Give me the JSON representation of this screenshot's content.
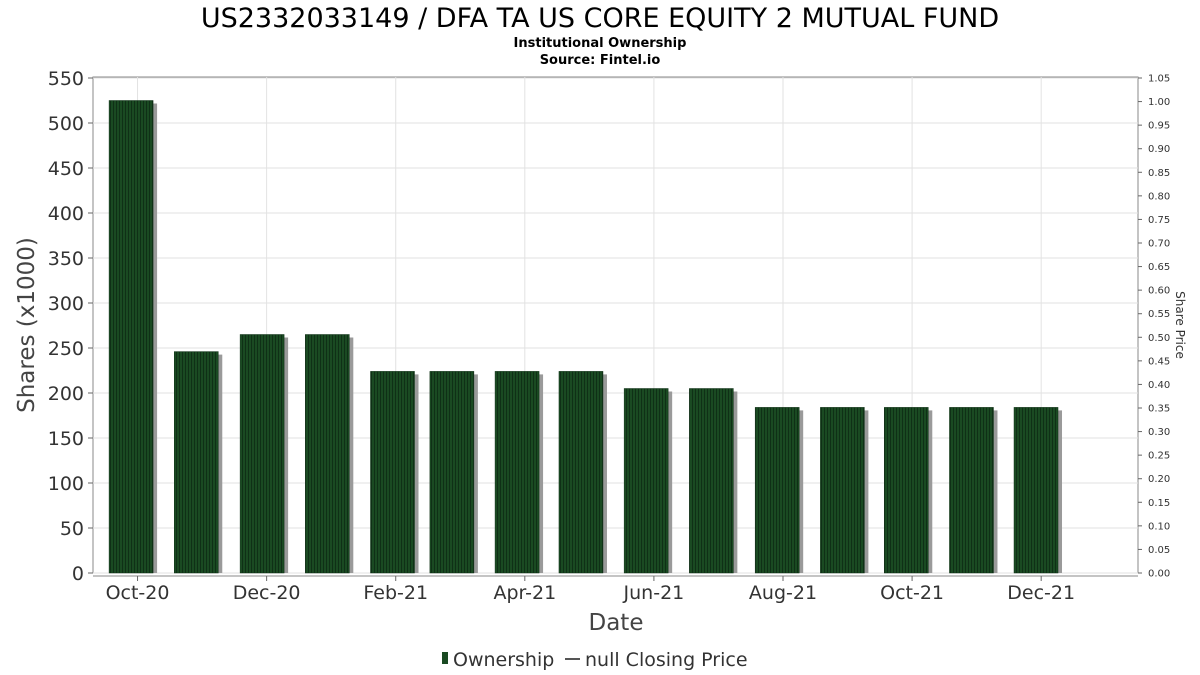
{
  "chart_data": {
    "type": "bar",
    "title": "US2332033149 / DFA TA US CORE EQUITY 2 MUTUAL FUND",
    "subtitle": "Institutional Ownership",
    "source": "Source: Fintel.io",
    "xlabel": "Date",
    "ylabel": "Shares (x1000)",
    "y2label": "Share Price",
    "ylim": [
      0,
      550
    ],
    "y2lim": [
      0,
      1.05
    ],
    "yticks": [
      0,
      50,
      100,
      150,
      200,
      250,
      300,
      350,
      400,
      450,
      500,
      550
    ],
    "y2ticks": [
      "0.00",
      "0.05",
      "0.10",
      "0.15",
      "0.20",
      "0.25",
      "0.30",
      "0.35",
      "0.40",
      "0.45",
      "0.50",
      "0.55",
      "0.60",
      "0.65",
      "0.70",
      "0.75",
      "0.80",
      "0.85",
      "0.90",
      "0.95",
      "1.00",
      "1.05"
    ],
    "xticks": [
      "Oct-20",
      "Dec-20",
      "Feb-21",
      "Apr-21",
      "Jun-21",
      "Aug-21",
      "Oct-21",
      "Dec-21"
    ],
    "xtick_month_index": [
      0,
      2,
      4,
      6,
      8,
      10,
      12,
      14
    ],
    "month_range": [
      -0.69,
      15.5
    ],
    "bar_month_index": [
      -0.1,
      0.91,
      1.93,
      2.94,
      3.95,
      4.87,
      5.88,
      6.87,
      7.88,
      8.89,
      9.91,
      10.92,
      11.91,
      12.92,
      13.92
    ],
    "series": [
      {
        "name": "Ownership",
        "color": "#1a4a22",
        "values": [
          525,
          246,
          265,
          265,
          224,
          224,
          224,
          224,
          205,
          205,
          184,
          184,
          184,
          184,
          184
        ]
      }
    ],
    "legend": [
      "Ownership",
      "null Closing Price"
    ],
    "legend_position": "bottom-center",
    "grid": true
  }
}
